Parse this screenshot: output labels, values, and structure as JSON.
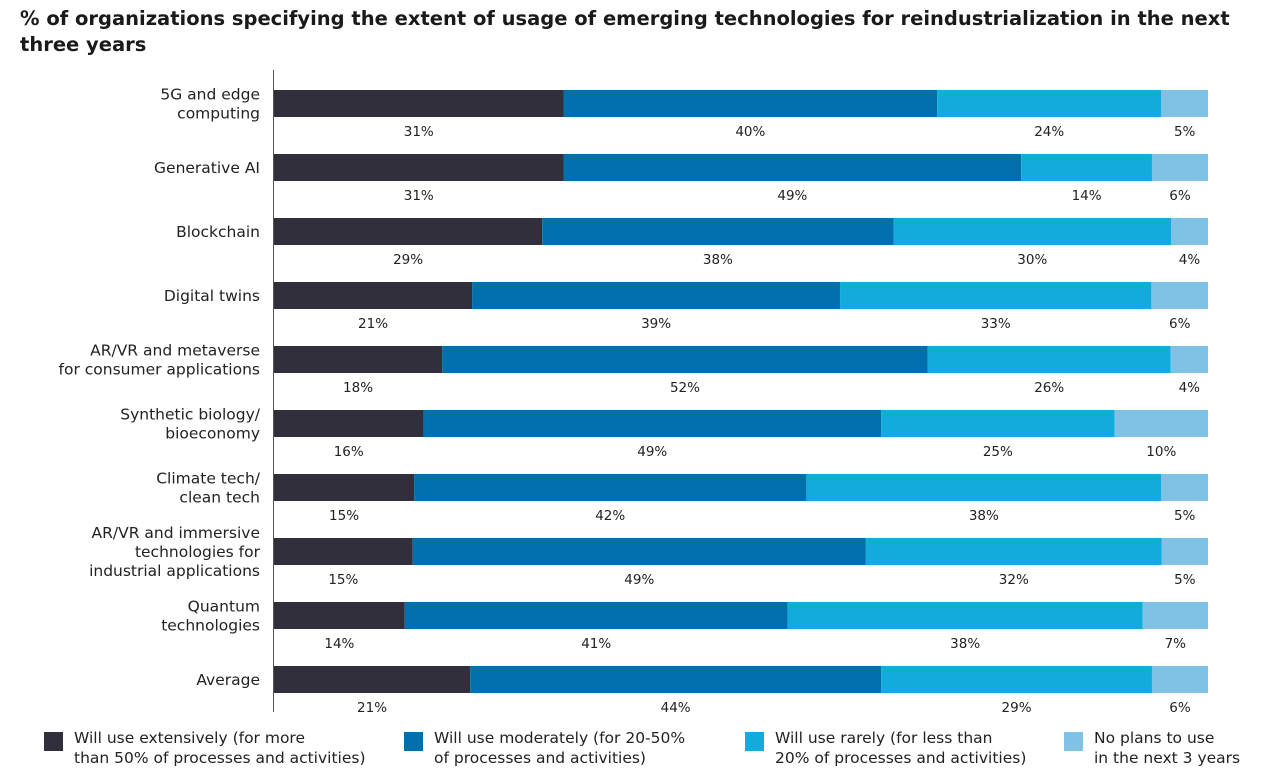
{
  "title": "% of organizations specifying the extent of usage of emerging technologies for reindustrialization in the next three years",
  "chart_data": {
    "type": "bar",
    "orientation": "horizontal",
    "stacked": true,
    "normalized": true,
    "categories": [
      "5G and edge\ncomputing",
      "Generative AI",
      "Blockchain",
      "Digital twins",
      "AR/VR and metaverse\nfor consumer applications",
      "Synthetic biology/\nbioeconomy",
      "Climate tech/\nclean tech",
      "AR/VR and immersive\ntechnologies for\nindustrial applications",
      "Quantum\ntechnologies",
      "Average"
    ],
    "series": [
      {
        "name": "Will use extensively (for more\nthan 50% of processes and activities)",
        "color": "#322f3d",
        "values": [
          31,
          31,
          29,
          21,
          18,
          16,
          15,
          15,
          14,
          21
        ]
      },
      {
        "name": "Will use moderately (for 20-50%\nof processes and activities)",
        "color": "#0070ad",
        "values": [
          40,
          49,
          38,
          39,
          52,
          49,
          42,
          49,
          41,
          44
        ]
      },
      {
        "name": "Will use rarely (for less than\n20% of processes and activities)",
        "color": "#12abdb",
        "values": [
          24,
          14,
          30,
          33,
          26,
          25,
          38,
          32,
          38,
          29
        ]
      },
      {
        "name": "No plans to use\nin the next 3 years",
        "color": "#80c2e6",
        "values": [
          5,
          6,
          4,
          6,
          4,
          10,
          5,
          5,
          7,
          6
        ]
      }
    ],
    "value_suffix": "%",
    "xlabel": "",
    "ylabel": "",
    "legend_position": "bottom",
    "grid": false
  }
}
